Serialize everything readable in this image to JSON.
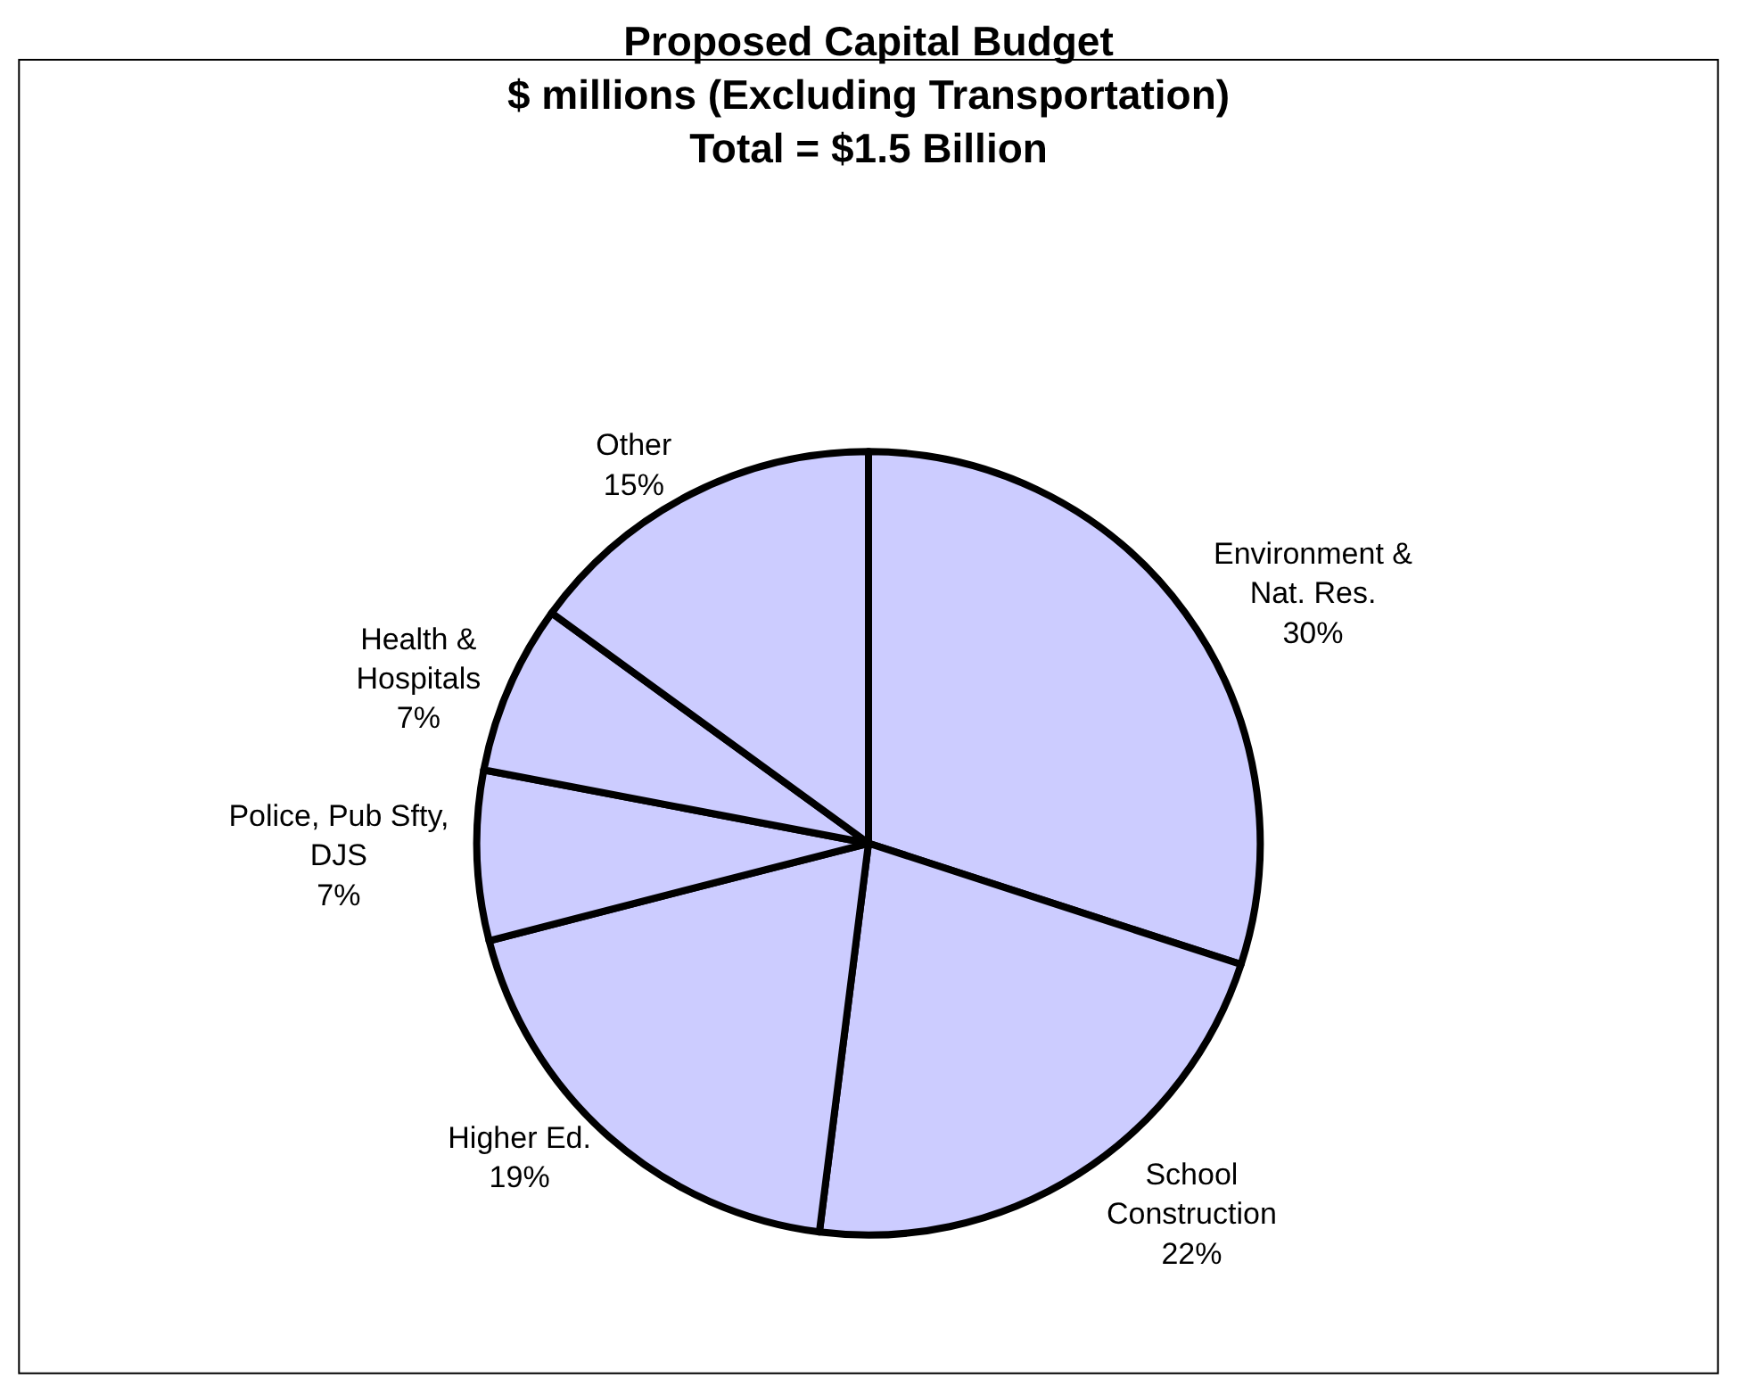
{
  "chart_data": {
    "type": "pie",
    "title": "Proposed Capital Budget\n$ millions (Excluding Transportation)\nTotal = $1.5 Billion",
    "categories": [
      "Environment &\nNat. Res.",
      "School\nConstruction",
      "Higher Ed.",
      "Police, Pub Sfty,\nDJS",
      "Health &\nHospitals",
      "Other"
    ],
    "values": [
      30,
      22,
      19,
      7,
      7,
      15
    ],
    "value_labels": [
      "30%",
      "22%",
      "19%",
      "7%",
      "7%",
      "15%"
    ],
    "colors": [
      "#ccccff",
      "#ccccff",
      "#ccccff",
      "#ccccff",
      "#ccccff",
      "#ccccff"
    ],
    "legend": false
  }
}
